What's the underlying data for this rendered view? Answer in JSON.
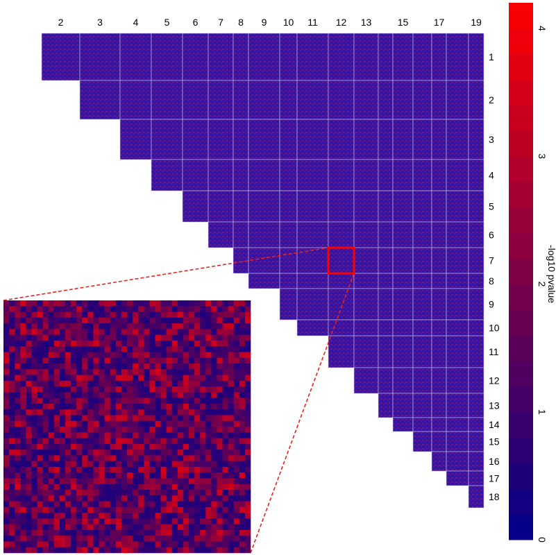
{
  "chart_data": {
    "type": "heatmap",
    "x_categories": [
      "2",
      "3",
      "4",
      "5",
      "6",
      "7",
      "8",
      "9",
      "10",
      "11",
      "12",
      "13",
      "14",
      "15",
      "16",
      "17",
      "18",
      "19"
    ],
    "y_categories": [
      "1",
      "2",
      "3",
      "4",
      "5",
      "6",
      "7",
      "8",
      "9",
      "10",
      "11",
      "12",
      "13",
      "14",
      "15",
      "16",
      "17",
      "18"
    ],
    "x_tick_labels": [
      "2",
      "3",
      "4",
      "5",
      "6",
      "7",
      "8",
      "9",
      "10",
      "11",
      "12",
      "13",
      "15",
      "17",
      "19"
    ],
    "y_tick_labels": [
      "1",
      "2",
      "3",
      "4",
      "5",
      "6",
      "7",
      "8",
      "9",
      "10",
      "11",
      "12",
      "13",
      "14",
      "15",
      "16",
      "17",
      "18"
    ],
    "upper_triangle_only": true,
    "highlighted_cell": {
      "row": "7",
      "col": "12"
    },
    "colorbar": {
      "label": "-log10 pvalue",
      "range": [
        0,
        4.2
      ],
      "ticks": [
        0,
        1,
        2,
        3,
        4
      ],
      "tick_labels": [
        "0",
        "1",
        "2",
        "3",
        "4"
      ],
      "colors": [
        "#00008b",
        "#ff0000"
      ]
    },
    "inset": {
      "description_of_source": "zoom of highlighted cell",
      "typical_value_range": [
        0.5,
        3.5
      ]
    }
  }
}
